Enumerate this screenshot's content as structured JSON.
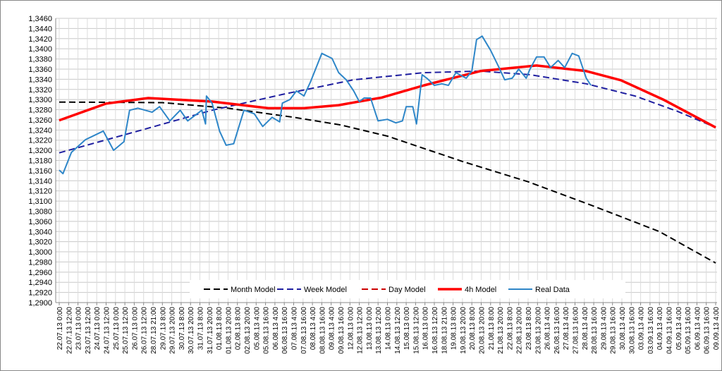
{
  "chart_data": {
    "type": "line",
    "title": "",
    "xlabel": "",
    "ylabel": "",
    "ylim": [
      1.29,
      1.346
    ],
    "ystep": 0.002,
    "grid": true,
    "legend_position": "bottom-center",
    "categories": [
      "22.07.13 0:00",
      "22.07.13 12:00",
      "23.07.13 0:00",
      "23.07.13 12:00",
      "24.07.13 0:00",
      "24.07.13 12:00",
      "25.07.13 0:00",
      "25.07.13 12:00",
      "26.07.13 0:00",
      "26.07.13 12:00",
      "28.07.13 21:00",
      "29.07.13 8:00",
      "29.07.13 20:00",
      "30.07.13 8:00",
      "30.07.13 20:00",
      "31.07.13 8:00",
      "31.07.13 20:00",
      "01.08.13 8:00",
      "01.08.13 20:00",
      "02.08.13 8:00",
      "02.08.13 20:00",
      "05.08.13 4:00",
      "05.08.13 16:00",
      "06.08.13 4:00",
      "06.08.13 16:00",
      "07.08.13 4:00",
      "07.08.13 16:00",
      "08.08.13 4:00",
      "08.08.13 16:00",
      "09.08.13 4:00",
      "09.08.13 16:00",
      "12.08.13 0:00",
      "12.08.13 12:00",
      "13.08.13 0:00",
      "13.08.13 12:00",
      "14.08.13 0:00",
      "14.08.13 12:00",
      "15.08.13 0:00",
      "15.08.13 12:00",
      "16.08.13 0:00",
      "16.08.13 12:00",
      "18.08.13 21:00",
      "19.08.13 8:00",
      "19.08.13 20:00",
      "20.08.13 8:00",
      "20.08.13 20:00",
      "21.08.13 8:00",
      "21.08.13 20:00",
      "22.08.13 8:00",
      "22.08.13 20:00",
      "23.08.13 8:00",
      "23.08.13 20:00",
      "26.08.13 4:00",
      "26.08.13 16:00",
      "27.08.13 4:00",
      "27.08.13 16:00",
      "28.08.13 4:00",
      "28.08.13 16:00",
      "29.08.13 4:00",
      "29.08.13 16:00",
      "30.08.13 4:00",
      "30.08.13 16:00",
      "03.09.13 4:00",
      "03.09.13 16:00",
      "04.09.13 4:00",
      "04.09.13 16:00",
      "05.09.13 4:00",
      "05.09.13 16:00",
      "06.09.13 4:00",
      "06.09.13 16:00",
      "09.09.13 4:00"
    ],
    "series": [
      {
        "name": "Month Model",
        "color": "#000000",
        "dash": true,
        "width": 2,
        "points": [
          [
            0,
            1.3295
          ],
          [
            11,
            1.3294
          ],
          [
            18,
            1.3283
          ],
          [
            25,
            1.3265
          ],
          [
            30,
            1.325
          ],
          [
            35,
            1.3228
          ],
          [
            43,
            1.3178
          ],
          [
            50,
            1.3138
          ],
          [
            57,
            1.309
          ],
          [
            64,
            1.304
          ],
          [
            70,
            1.2978
          ]
        ]
      },
      {
        "name": "Week Model",
        "color": "#1f1fa0",
        "dash": true,
        "width": 2,
        "points": [
          [
            0,
            1.3195
          ],
          [
            8.8,
            1.324
          ],
          [
            16.3,
            1.3279
          ],
          [
            23.8,
            1.331
          ],
          [
            31.4,
            1.3339
          ],
          [
            38.9,
            1.3353
          ],
          [
            44.9,
            1.3356
          ],
          [
            50.2,
            1.3349
          ],
          [
            56.2,
            1.3331
          ],
          [
            61.4,
            1.3307
          ],
          [
            65.9,
            1.3277
          ],
          [
            70,
            1.3245
          ]
        ]
      },
      {
        "name": "Day Model",
        "color": "#cc0000",
        "dash": true,
        "width": 2,
        "points": [
          [
            0,
            1.3259
          ],
          [
            5,
            1.3292
          ],
          [
            9.5,
            1.3303
          ],
          [
            16.3,
            1.3296
          ],
          [
            22.3,
            1.3283
          ],
          [
            26.1,
            1.3283
          ],
          [
            29.8,
            1.3289
          ],
          [
            34.4,
            1.3304
          ],
          [
            38.9,
            1.3328
          ],
          [
            44.9,
            1.3356
          ],
          [
            50.9,
            1.3367
          ],
          [
            56.2,
            1.3356
          ],
          [
            59.9,
            1.3338
          ],
          [
            64.4,
            1.33
          ],
          [
            70,
            1.3245
          ]
        ]
      },
      {
        "name": "4h Model",
        "color": "#ff0000",
        "dash": false,
        "width": 3.5,
        "points": [
          [
            0,
            1.3259
          ],
          [
            5,
            1.3292
          ],
          [
            9.5,
            1.3303
          ],
          [
            16.3,
            1.3296
          ],
          [
            22.3,
            1.3283
          ],
          [
            26.1,
            1.3283
          ],
          [
            29.8,
            1.3289
          ],
          [
            34.4,
            1.3304
          ],
          [
            38.9,
            1.3328
          ],
          [
            44.9,
            1.3356
          ],
          [
            50.9,
            1.3367
          ],
          [
            56.2,
            1.3356
          ],
          [
            59.9,
            1.3338
          ],
          [
            64.4,
            1.33
          ],
          [
            70,
            1.3245
          ]
        ]
      },
      {
        "name": "Real Data",
        "color": "#2e86c8",
        "dash": false,
        "width": 2,
        "points": [
          [
            0,
            1.3161
          ],
          [
            0.4,
            1.3154
          ],
          [
            1.3,
            1.3196
          ],
          [
            2.8,
            1.3221
          ],
          [
            4.7,
            1.3238
          ],
          [
            5.8,
            1.32
          ],
          [
            6.9,
            1.3217
          ],
          [
            7.5,
            1.3279
          ],
          [
            8.4,
            1.3283
          ],
          [
            9.9,
            1.3275
          ],
          [
            10.7,
            1.3286
          ],
          [
            11.8,
            1.3258
          ],
          [
            12.9,
            1.3279
          ],
          [
            13.7,
            1.3258
          ],
          [
            15.2,
            1.3279
          ],
          [
            15.6,
            1.3252
          ],
          [
            15.7,
            1.3307
          ],
          [
            16.3,
            1.3293
          ],
          [
            17.1,
            1.3238
          ],
          [
            17.8,
            1.321
          ],
          [
            18.6,
            1.3213
          ],
          [
            19.7,
            1.3279
          ],
          [
            20.8,
            1.3272
          ],
          [
            21.7,
            1.3247
          ],
          [
            22.7,
            1.3265
          ],
          [
            23.5,
            1.3256
          ],
          [
            23.8,
            1.3293
          ],
          [
            24.6,
            1.33
          ],
          [
            25.3,
            1.3317
          ],
          [
            26.1,
            1.3307
          ],
          [
            26.8,
            1.3335
          ],
          [
            28,
            1.3391
          ],
          [
            29.1,
            1.3381
          ],
          [
            29.8,
            1.3353
          ],
          [
            30.6,
            1.3339
          ],
          [
            31.4,
            1.3317
          ],
          [
            32,
            1.3296
          ],
          [
            32.5,
            1.3303
          ],
          [
            33.2,
            1.3303
          ],
          [
            34,
            1.3258
          ],
          [
            35,
            1.3261
          ],
          [
            35.9,
            1.3254
          ],
          [
            36.6,
            1.3258
          ],
          [
            37,
            1.3286
          ],
          [
            37.7,
            1.3286
          ],
          [
            38.1,
            1.3252
          ],
          [
            38.7,
            1.3349
          ],
          [
            39.2,
            1.3342
          ],
          [
            40,
            1.3328
          ],
          [
            40.8,
            1.3331
          ],
          [
            41.5,
            1.3328
          ],
          [
            42.3,
            1.3353
          ],
          [
            43.4,
            1.3342
          ],
          [
            44,
            1.3356
          ],
          [
            44.5,
            1.3418
          ],
          [
            45.1,
            1.3425
          ],
          [
            46,
            1.3397
          ],
          [
            46.8,
            1.3367
          ],
          [
            47.5,
            1.3339
          ],
          [
            48.3,
            1.3342
          ],
          [
            49,
            1.336
          ],
          [
            49.8,
            1.3342
          ],
          [
            50.2,
            1.336
          ],
          [
            50.9,
            1.3384
          ],
          [
            51.7,
            1.3384
          ],
          [
            52.4,
            1.3363
          ],
          [
            53.2,
            1.3377
          ],
          [
            53.9,
            1.3363
          ],
          [
            54.7,
            1.3391
          ],
          [
            55.4,
            1.3386
          ],
          [
            56.2,
            1.3342
          ],
          [
            56.7,
            1.3328
          ]
        ]
      }
    ]
  }
}
